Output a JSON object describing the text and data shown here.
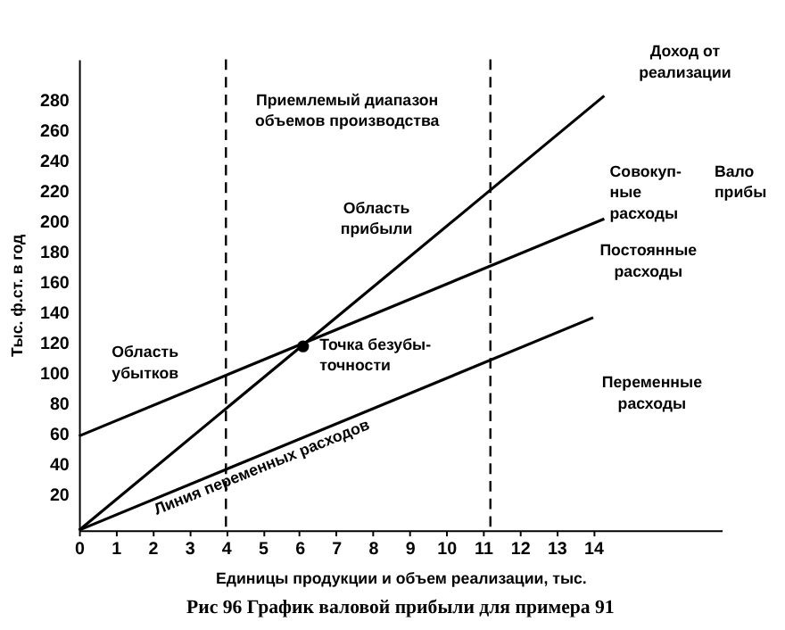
{
  "chart_data": {
    "type": "line",
    "title": "Рис 96 График валовой прибыли для примера 91",
    "xlabel": "Единицы продукции и объем реализации, тыс.",
    "ylabel": "Тыс. ф.ст. в год",
    "xlim": [
      0,
      17.5
    ],
    "ylim": [
      0,
      310
    ],
    "xticks": [
      0,
      1,
      2,
      3,
      4,
      5,
      6,
      7,
      8,
      9,
      10,
      11,
      12,
      13,
      14
    ],
    "yticks": [
      20,
      40,
      60,
      80,
      100,
      120,
      140,
      160,
      180,
      200,
      220,
      240,
      260,
      280
    ],
    "grid": false,
    "marker": "none",
    "line_style": "solid",
    "series": [
      {
        "color": "#000000",
        "x": [
          0,
          14.3
        ],
        "values": [
          0,
          286
        ]
      },
      {
        "color": "#000000",
        "x": [
          0,
          14.3
        ],
        "values": [
          62,
          205
        ]
      },
      {
        "color": "#000000",
        "x": [
          0,
          14
        ],
        "values": [
          0,
          140
        ]
      },
      {
        "type": "scatter",
        "color": "#000000",
        "marker": "circle",
        "x": [
          6.1
        ],
        "values": [
          121
        ]
      }
    ],
    "ref_lines": [
      {
        "axis": "x",
        "value": 4,
        "line_style": "dashed",
        "color": "#000000"
      },
      {
        "axis": "x",
        "value": 11.2,
        "line_style": "dashed",
        "color": "#000000"
      }
    ],
    "annotations": [
      "Приемлемый диапазон\nобъемов производства",
      "Область\nприбыли",
      "Область\nубытков",
      "Точка безубы-\nточности",
      "Линия переменных расходов",
      "Доход от\nреализации",
      "Совокуп-\nные\nрасходы",
      "Постоянные\nрасходы",
      "Переменные\nрасходы",
      "Вало\nприбы"
    ]
  }
}
